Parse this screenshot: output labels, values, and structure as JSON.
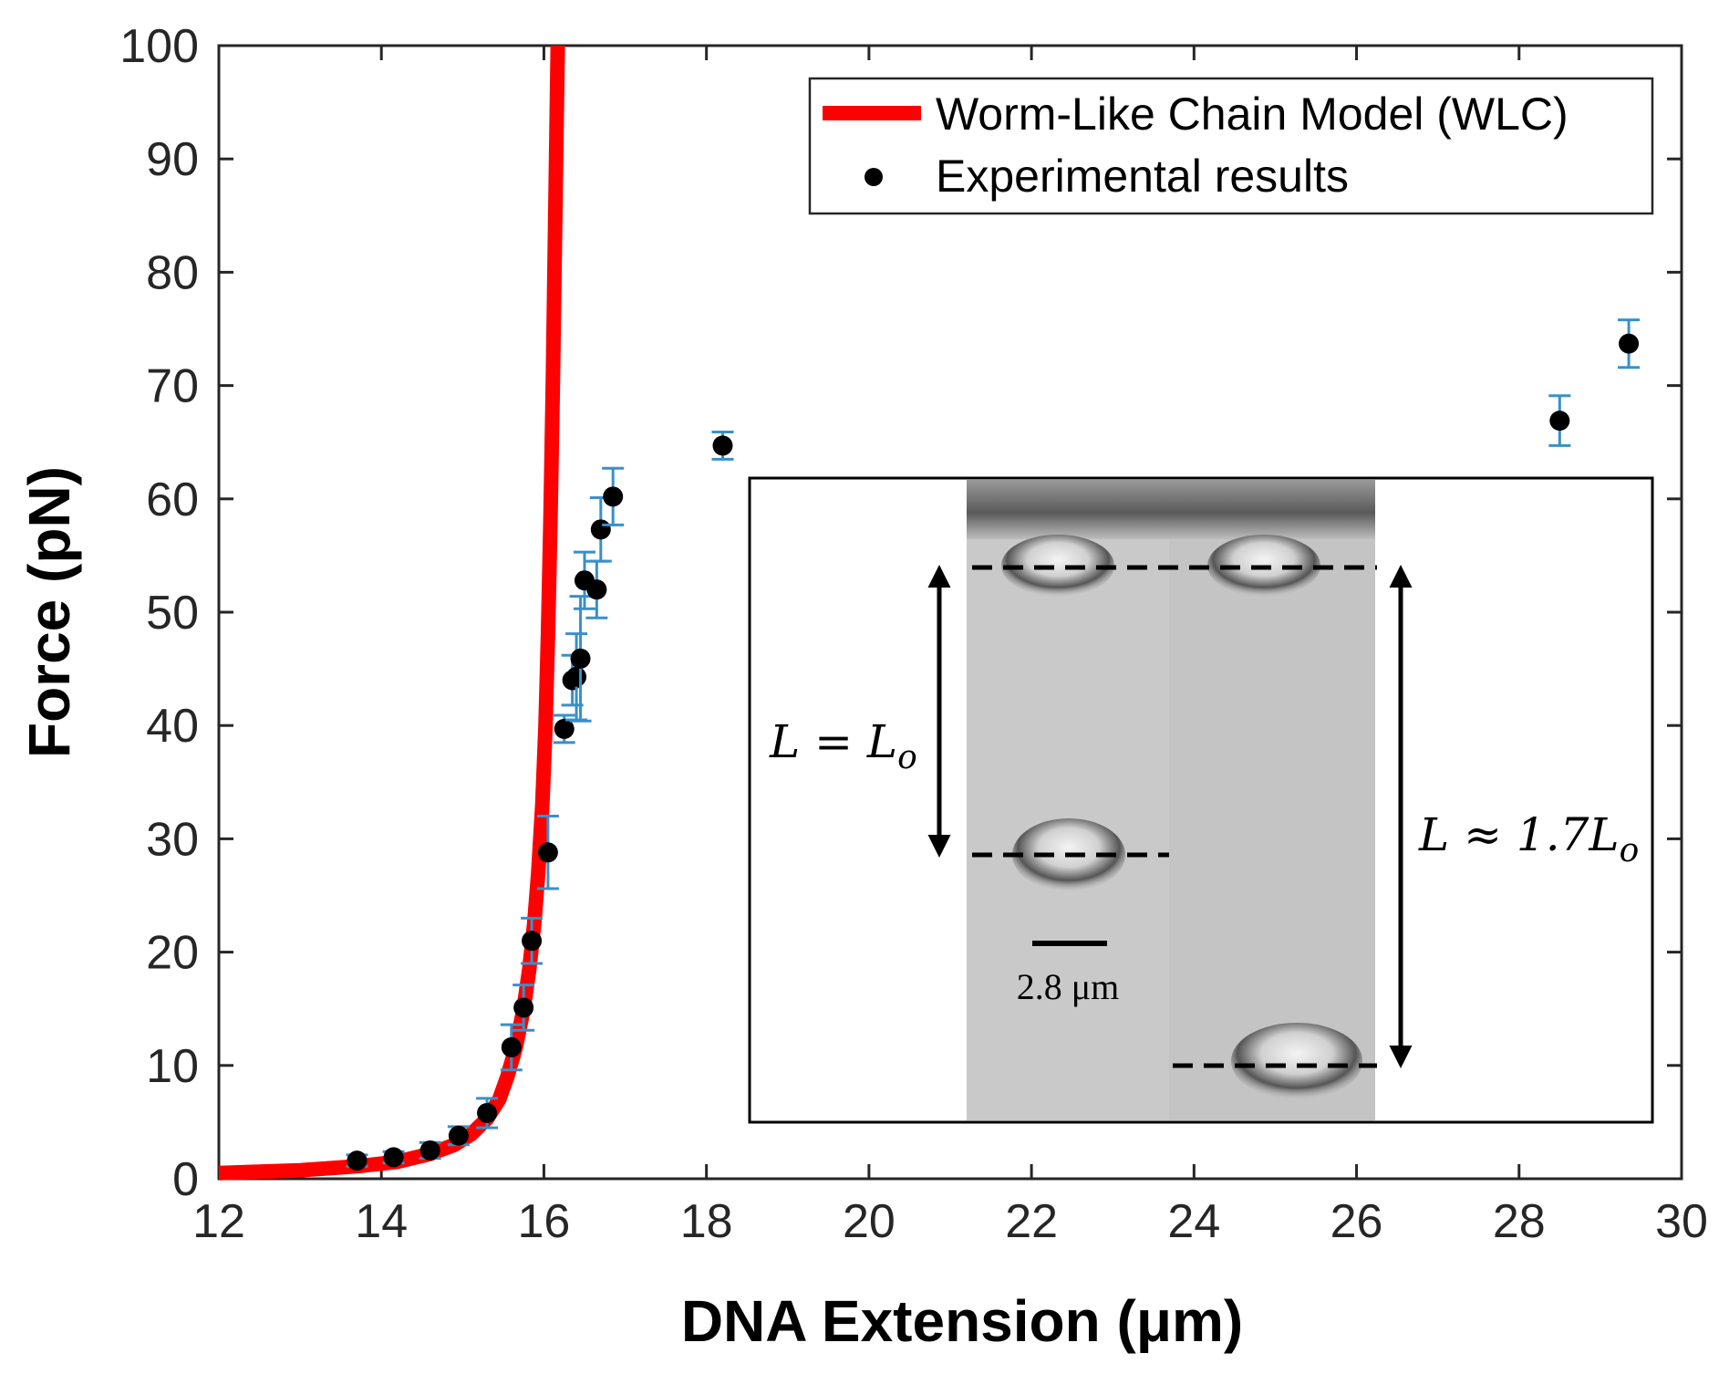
{
  "chart_data": {
    "type": "scatter",
    "xlabel": "DNA Extension (μm)",
    "ylabel": "Force (pN)",
    "xlim": [
      12,
      30
    ],
    "ylim": [
      0,
      100
    ],
    "xticks": [
      12,
      14,
      16,
      18,
      20,
      22,
      24,
      26,
      28,
      30
    ],
    "yticks": [
      0,
      10,
      20,
      30,
      40,
      50,
      60,
      70,
      80,
      90,
      100
    ],
    "grid": false,
    "legend_position": "top-right",
    "series": [
      {
        "name": "Worm-Like Chain Model (WLC)",
        "kind": "line",
        "color": "#ff0000",
        "points": [
          [
            12.0,
            0.5
          ],
          [
            13.0,
            0.75
          ],
          [
            13.7,
            1.1
          ],
          [
            14.2,
            1.5
          ],
          [
            14.6,
            2.2
          ],
          [
            14.9,
            3.0
          ],
          [
            15.1,
            3.9
          ],
          [
            15.3,
            5.3
          ],
          [
            15.45,
            7.0
          ],
          [
            15.55,
            9.0
          ],
          [
            15.65,
            11.5
          ],
          [
            15.75,
            15.0
          ],
          [
            15.82,
            18.5
          ],
          [
            15.88,
            22.5
          ],
          [
            15.93,
            27.0
          ],
          [
            15.98,
            33.0
          ],
          [
            16.02,
            40.0
          ],
          [
            16.05,
            48.0
          ],
          [
            16.08,
            58.0
          ],
          [
            16.11,
            70.0
          ],
          [
            16.14,
            85.0
          ],
          [
            16.17,
            100.0
          ]
        ]
      },
      {
        "name": "Experimental results",
        "kind": "points",
        "color": "#000000",
        "error_color": "#3a8fc8",
        "points": [
          {
            "x": 13.7,
            "y": 1.6,
            "err": 0.5
          },
          {
            "x": 14.15,
            "y": 1.9,
            "err": 0.5
          },
          {
            "x": 14.6,
            "y": 2.5,
            "err": 0.7
          },
          {
            "x": 14.95,
            "y": 3.8,
            "err": 0.8
          },
          {
            "x": 15.3,
            "y": 5.8,
            "err": 1.3
          },
          {
            "x": 15.6,
            "y": 11.6,
            "err": 2.0
          },
          {
            "x": 15.75,
            "y": 15.1,
            "err": 2.0
          },
          {
            "x": 15.85,
            "y": 21.0,
            "err": 2.0
          },
          {
            "x": 16.05,
            "y": 28.8,
            "err": 3.2
          },
          {
            "x": 16.25,
            "y": 39.7,
            "err": 1.2
          },
          {
            "x": 16.35,
            "y": 44.0,
            "err": 2.2
          },
          {
            "x": 16.4,
            "y": 44.3,
            "err": 3.8
          },
          {
            "x": 16.45,
            "y": 45.9,
            "err": 5.5
          },
          {
            "x": 16.5,
            "y": 52.8,
            "err": 2.5
          },
          {
            "x": 16.65,
            "y": 52.0,
            "err": 2.5
          },
          {
            "x": 16.7,
            "y": 57.3,
            "err": 2.8
          },
          {
            "x": 16.85,
            "y": 60.2,
            "err": 2.5
          },
          {
            "x": 18.2,
            "y": 64.7,
            "err": 1.2
          },
          {
            "x": 28.5,
            "y": 66.9,
            "err": 2.2
          },
          {
            "x": 29.35,
            "y": 73.7,
            "err": 2.1
          }
        ]
      }
    ],
    "inset": {
      "description_label_left": "L = L",
      "label_left_sub": "o",
      "label_right": "L ≈ 1.7L",
      "label_right_sub": "o",
      "scale_bar_label": "2.8 μm"
    }
  }
}
